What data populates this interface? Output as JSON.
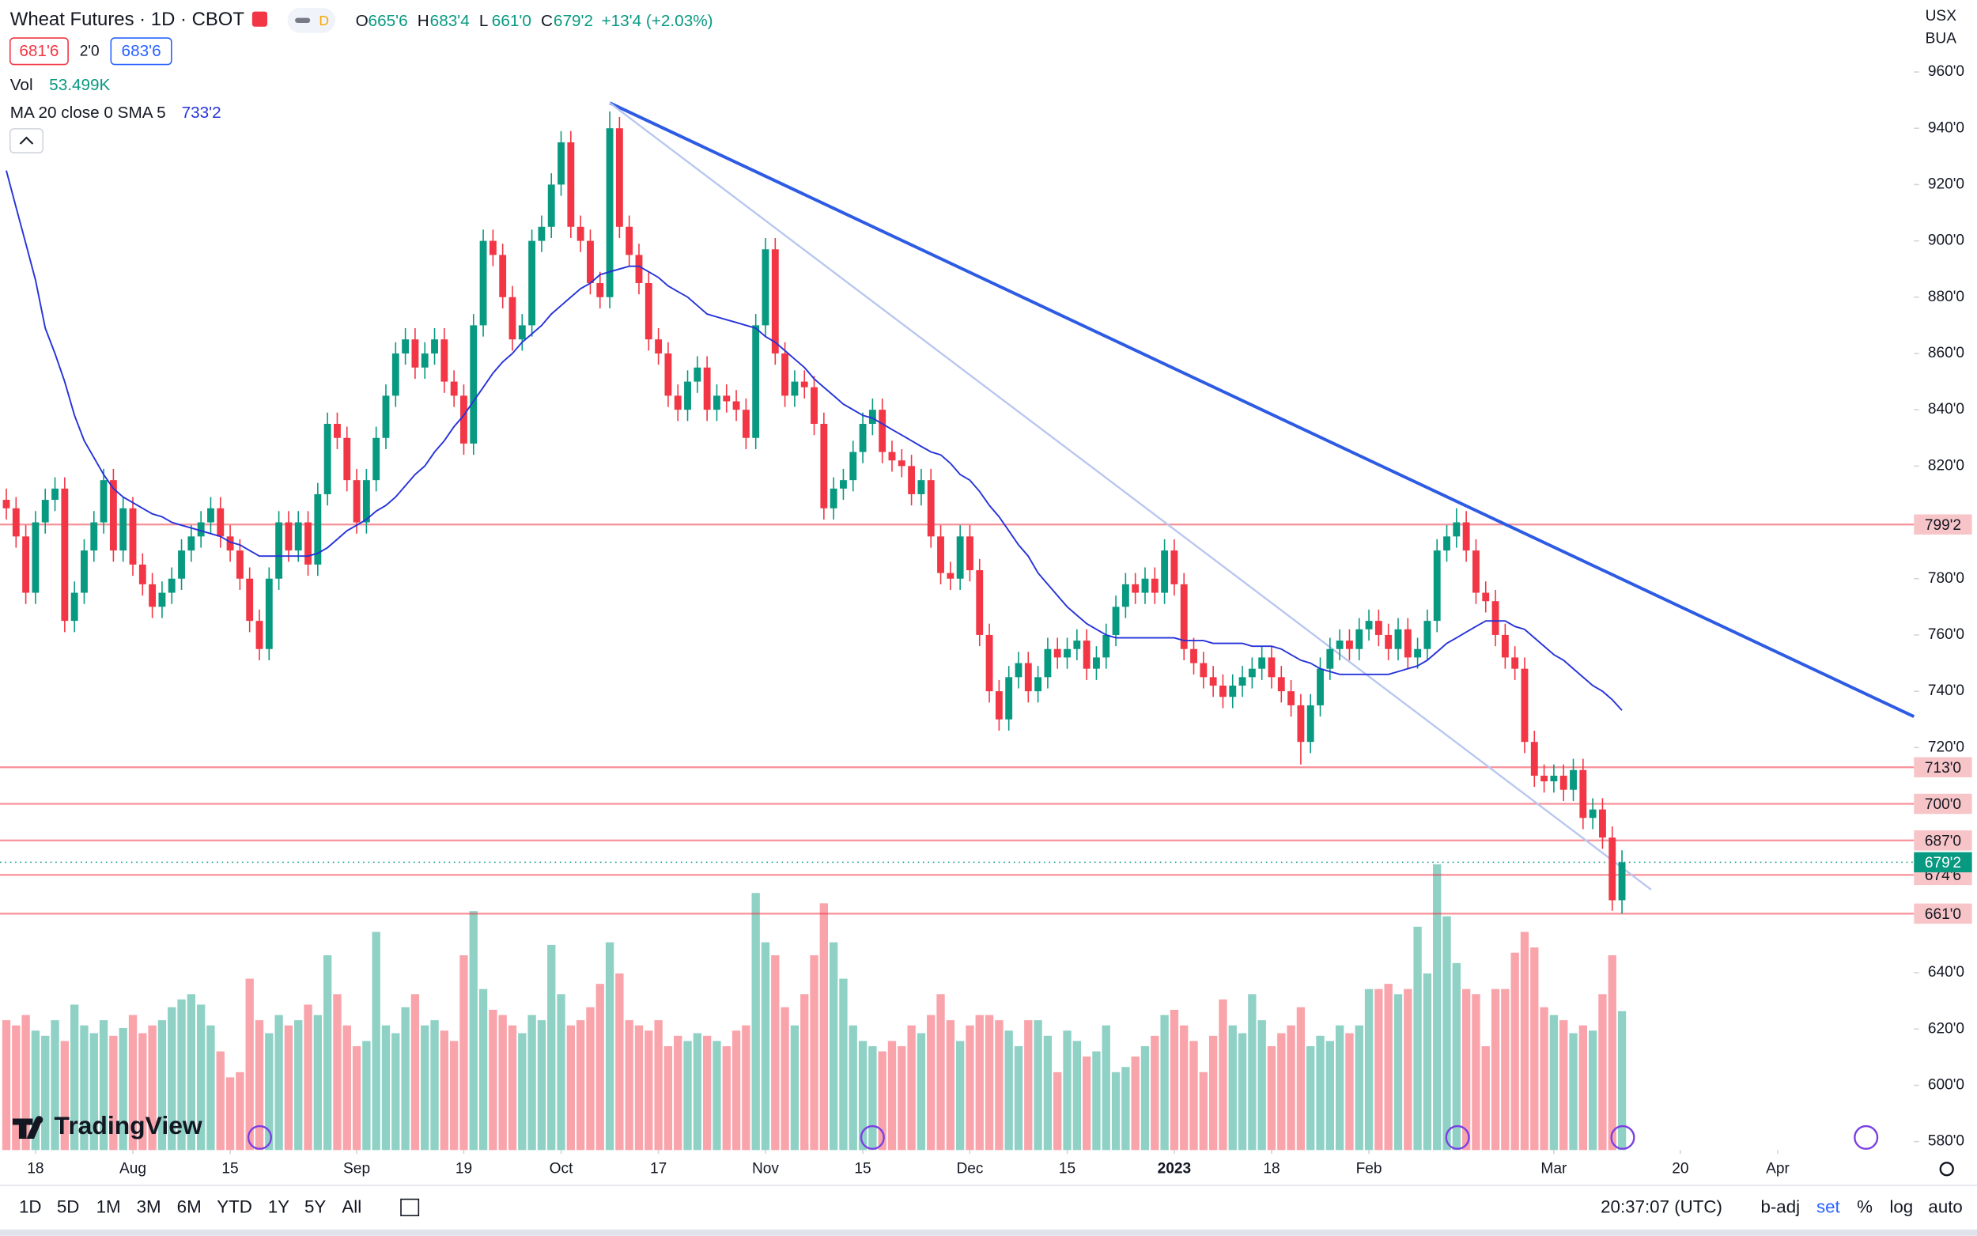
{
  "header": {
    "symbol": "Wheat Futures · 1D · CBOT",
    "badge": "D",
    "ohlc": [
      {
        "key": "O",
        "value": "665'6"
      },
      {
        "key": "H",
        "value": "683'4"
      },
      {
        "key": "L",
        "value": "661'0"
      },
      {
        "key": "C",
        "value": "679'2"
      }
    ],
    "change": "+13'4 (+2.03%)",
    "bid": "681'6",
    "spread": "2'0",
    "ask": "683'6",
    "vol_name": "Vol",
    "vol_value": "53.499K",
    "ma_name": "MA 20 close 0 SMA 5",
    "ma_value": "733'2",
    "currency": "USX",
    "unit": "BUA",
    "logo": "TradingView"
  },
  "toolbar": {
    "ranges": [
      "1D",
      "5D",
      "1M",
      "3M",
      "6M",
      "YTD",
      "1Y",
      "5Y",
      "All"
    ],
    "clock": "20:37:07 (UTC)",
    "options": [
      "b-adj",
      "set",
      "%",
      "log",
      "auto"
    ]
  },
  "chart_data": {
    "type": "candlestick",
    "up_color": "#089981",
    "down_color": "#f23645",
    "ma_color": "#2633d9",
    "open": [
      808,
      805,
      795,
      775,
      800,
      808,
      812,
      765,
      775,
      790,
      800,
      815,
      790,
      805,
      785,
      778,
      770,
      775,
      780,
      790,
      795,
      800,
      805,
      795,
      790,
      780,
      765,
      755,
      780,
      800,
      790,
      800,
      785,
      810,
      835,
      830,
      815,
      800,
      815,
      830,
      845,
      860,
      865,
      855,
      860,
      865,
      850,
      845,
      828,
      870,
      900,
      895,
      880,
      865,
      870,
      900,
      905,
      920,
      935,
      905,
      900,
      885,
      880,
      940,
      905,
      895,
      885,
      865,
      860,
      845,
      840,
      850,
      855,
      840,
      845,
      843,
      840,
      830,
      870,
      897,
      860,
      845,
      850,
      848,
      835,
      805,
      812,
      815,
      825,
      835,
      840,
      825,
      822,
      820,
      810,
      815,
      795,
      782,
      780,
      795,
      783,
      760,
      740,
      730,
      745,
      750,
      740,
      745,
      755,
      752,
      755,
      758,
      748,
      752,
      760,
      770,
      778,
      775,
      780,
      775,
      790,
      778,
      755,
      750,
      745,
      742,
      738,
      742,
      745,
      748,
      752,
      745,
      740,
      735,
      722,
      735,
      748,
      755,
      758,
      755,
      762,
      765,
      760,
      755,
      762,
      752,
      755,
      765,
      790,
      795,
      800,
      790,
      775,
      772,
      760,
      752,
      748,
      722,
      710,
      708,
      710,
      705,
      712,
      695,
      698,
      688,
      665.75
    ],
    "high": [
      812,
      809,
      799,
      804,
      812,
      816,
      816,
      779,
      794,
      804,
      819,
      819,
      809,
      809,
      789,
      782,
      779,
      784,
      794,
      799,
      804,
      809,
      809,
      799,
      794,
      784,
      769,
      784,
      804,
      804,
      804,
      804,
      814,
      839,
      839,
      834,
      819,
      819,
      834,
      849,
      864,
      869,
      869,
      864,
      869,
      869,
      854,
      849,
      874,
      904,
      904,
      899,
      884,
      874,
      904,
      909,
      924,
      939,
      939,
      909,
      904,
      889,
      946,
      944,
      909,
      899,
      889,
      869,
      864,
      849,
      854,
      859,
      859,
      849,
      849,
      847,
      844,
      874,
      901,
      901,
      864,
      854,
      854,
      852,
      839,
      816,
      819,
      829,
      839,
      844,
      844,
      829,
      826,
      824,
      819,
      819,
      799,
      786,
      799,
      799,
      787,
      764,
      744,
      749,
      754,
      754,
      749,
      759,
      759,
      759,
      762,
      762,
      756,
      764,
      774,
      782,
      782,
      784,
      784,
      794,
      794,
      782,
      759,
      754,
      749,
      746,
      746,
      749,
      752,
      756,
      756,
      749,
      744,
      739,
      739,
      752,
      759,
      762,
      762,
      766,
      769,
      769,
      764,
      766,
      766,
      759,
      769,
      794,
      799,
      805,
      804,
      794,
      779,
      776,
      764,
      756,
      752,
      726,
      714,
      714,
      714,
      716,
      716,
      702,
      702,
      692,
      683.5
    ],
    "low": [
      801,
      791,
      771,
      771,
      796,
      804,
      761,
      761,
      771,
      786,
      796,
      786,
      786,
      781,
      774,
      766,
      766,
      771,
      776,
      786,
      791,
      796,
      791,
      786,
      776,
      761,
      751,
      751,
      776,
      786,
      786,
      781,
      781,
      806,
      826,
      811,
      796,
      796,
      811,
      826,
      841,
      856,
      851,
      851,
      856,
      846,
      841,
      824,
      824,
      866,
      891,
      876,
      861,
      861,
      866,
      896,
      901,
      916,
      901,
      896,
      881,
      876,
      876,
      901,
      891,
      881,
      861,
      856,
      841,
      836,
      836,
      846,
      836,
      836,
      839,
      836,
      826,
      826,
      866,
      856,
      841,
      841,
      844,
      831,
      801,
      801,
      808,
      811,
      821,
      831,
      821,
      818,
      816,
      806,
      806,
      791,
      778,
      776,
      776,
      779,
      756,
      736,
      726,
      726,
      741,
      736,
      736,
      741,
      748,
      748,
      751,
      744,
      744,
      748,
      756,
      766,
      771,
      771,
      771,
      771,
      774,
      751,
      746,
      741,
      738,
      734,
      734,
      738,
      741,
      744,
      741,
      736,
      731,
      714,
      718,
      731,
      744,
      751,
      751,
      751,
      758,
      756,
      751,
      751,
      748,
      748,
      751,
      761,
      786,
      791,
      786,
      771,
      768,
      756,
      748,
      744,
      718,
      706,
      704,
      704,
      701,
      701,
      691,
      691,
      684,
      662,
      661
    ],
    "close": [
      805,
      795,
      775,
      800,
      808,
      812,
      765,
      775,
      790,
      800,
      815,
      790,
      805,
      785,
      778,
      770,
      775,
      780,
      790,
      795,
      800,
      805,
      795,
      790,
      780,
      765,
      755,
      780,
      800,
      790,
      800,
      785,
      810,
      835,
      830,
      815,
      800,
      815,
      830,
      845,
      860,
      865,
      855,
      860,
      865,
      850,
      845,
      828,
      870,
      900,
      895,
      880,
      865,
      870,
      900,
      905,
      920,
      935,
      905,
      900,
      885,
      880,
      940,
      905,
      895,
      885,
      865,
      860,
      845,
      840,
      850,
      855,
      840,
      845,
      843,
      840,
      830,
      870,
      897,
      860,
      845,
      850,
      848,
      835,
      805,
      812,
      815,
      825,
      835,
      840,
      825,
      822,
      820,
      810,
      815,
      795,
      782,
      780,
      795,
      783,
      760,
      740,
      730,
      745,
      750,
      740,
      745,
      755,
      752,
      755,
      758,
      748,
      752,
      760,
      770,
      778,
      775,
      780,
      775,
      790,
      778,
      755,
      750,
      745,
      742,
      738,
      742,
      745,
      748,
      752,
      745,
      740,
      735,
      722,
      735,
      748,
      755,
      758,
      755,
      762,
      765,
      760,
      755,
      762,
      752,
      755,
      765,
      790,
      795,
      800,
      790,
      775,
      772,
      760,
      752,
      748,
      722,
      710,
      708,
      710,
      705,
      712,
      695,
      698,
      688,
      665.75,
      679.25
    ],
    "volume": [
      50,
      48,
      52,
      46,
      44,
      50,
      42,
      56,
      48,
      45,
      50,
      44,
      47,
      52,
      45,
      48,
      50,
      55,
      58,
      60,
      56,
      48,
      38,
      28,
      30,
      66,
      50,
      45,
      52,
      48,
      50,
      56,
      52,
      75,
      60,
      48,
      40,
      42,
      84,
      48,
      45,
      55,
      60,
      48,
      50,
      46,
      42,
      75,
      92,
      62,
      54,
      52,
      48,
      45,
      52,
      50,
      79,
      60,
      48,
      50,
      55,
      64,
      80,
      68,
      50,
      48,
      46,
      50,
      40,
      44,
      42,
      45,
      44,
      42,
      40,
      46,
      48,
      99,
      80,
      75,
      55,
      48,
      60,
      75,
      95,
      80,
      66,
      48,
      42,
      40,
      38,
      42,
      40,
      48,
      45,
      52,
      60,
      50,
      42,
      48,
      52,
      52,
      50,
      46,
      40,
      50,
      50,
      44,
      30,
      46,
      42,
      36,
      38,
      48,
      30,
      32,
      36,
      40,
      44,
      52,
      54,
      48,
      42,
      30,
      44,
      58,
      48,
      45,
      60,
      50,
      40,
      45,
      48,
      55,
      40,
      44,
      42,
      48,
      45,
      48,
      62,
      62,
      64,
      60,
      62,
      86,
      68,
      110,
      90,
      72,
      62,
      60,
      40,
      62,
      62,
      76,
      84,
      78,
      55,
      52,
      50,
      45,
      48,
      46,
      60,
      75,
      53.499
    ],
    "ma": [
      925,
      912,
      899,
      886,
      869,
      860,
      850,
      838,
      829,
      823,
      817,
      812,
      809,
      807,
      805,
      803,
      802,
      800,
      799,
      798,
      797,
      796,
      795,
      793,
      792,
      790,
      788,
      788,
      788,
      788,
      788,
      788,
      789,
      791,
      794,
      797,
      799,
      801,
      804,
      806,
      809,
      813,
      817,
      820,
      825,
      829,
      834,
      838,
      843,
      848,
      853,
      857,
      860,
      864,
      867,
      870,
      874,
      877,
      880,
      883,
      885,
      888,
      889,
      890,
      891,
      891,
      889,
      887,
      884,
      882,
      880,
      877,
      874,
      873,
      872,
      871,
      870,
      869,
      866,
      864,
      861,
      858,
      855,
      851,
      848,
      845,
      842,
      840,
      838,
      837,
      835,
      833,
      831,
      829,
      827,
      825,
      824,
      821,
      817,
      815,
      811,
      806,
      802,
      797,
      792,
      788,
      782,
      778,
      774,
      770,
      767,
      764,
      762,
      760,
      759,
      759,
      759,
      759,
      759,
      759,
      759,
      758,
      758,
      758,
      757,
      757,
      757,
      757,
      756,
      756,
      756,
      755,
      753,
      751,
      750,
      748,
      747,
      746,
      746,
      746,
      746,
      746,
      746,
      747,
      748,
      749,
      751,
      754,
      757,
      759,
      761,
      763,
      765,
      765,
      765,
      763,
      762,
      759,
      756,
      753,
      751,
      748,
      745,
      742,
      740,
      737,
      733.25
    ],
    "levels": [
      {
        "value": 799.25,
        "label": "799'2"
      },
      {
        "value": 713,
        "label": "713'0"
      },
      {
        "value": 700,
        "label": "700'0"
      },
      {
        "value": 687,
        "label": "687'0"
      },
      {
        "value": 674.75,
        "label": "674'6"
      },
      {
        "value": 661,
        "label": "661'0"
      }
    ],
    "last": {
      "value": 679.25,
      "label": "679'2"
    },
    "trend_lines": [
      {
        "x": [
          62,
          196
        ],
        "y": [
          949,
          731
        ],
        "color": "#2d5be3"
      },
      {
        "x": [
          62,
          169
        ],
        "y": [
          949,
          669.5
        ],
        "color": "#b9c7f0"
      }
    ],
    "ylim": [
      577,
      985.5
    ],
    "yticks": [
      {
        "value": 960,
        "label": "960'0"
      },
      {
        "value": 940,
        "label": "940'0"
      },
      {
        "value": 920,
        "label": "920'0"
      },
      {
        "value": 900,
        "label": "900'0"
      },
      {
        "value": 880,
        "label": "880'0"
      },
      {
        "value": 860,
        "label": "860'0"
      },
      {
        "value": 840,
        "label": "840'0"
      },
      {
        "value": 820,
        "label": "820'0"
      },
      {
        "value": 780,
        "label": "780'0"
      },
      {
        "value": 760,
        "label": "760'0"
      },
      {
        "value": 740,
        "label": "740'0"
      },
      {
        "value": 720,
        "label": "720'0"
      },
      {
        "value": 640,
        "label": "640'0"
      },
      {
        "value": 620,
        "label": "620'0"
      },
      {
        "value": 600,
        "label": "600'0"
      },
      {
        "value": 580,
        "label": "580'0"
      }
    ],
    "xlim": [
      -0.65,
      196
    ],
    "xticks": [
      {
        "value": 3,
        "label": "18"
      },
      {
        "value": 13,
        "label": "Aug"
      },
      {
        "value": 23,
        "label": "15"
      },
      {
        "value": 36,
        "label": "Sep"
      },
      {
        "value": 47,
        "label": "19"
      },
      {
        "value": 57,
        "label": "Oct"
      },
      {
        "value": 67,
        "label": "17"
      },
      {
        "value": 78,
        "label": "Nov"
      },
      {
        "value": 88,
        "label": "15"
      },
      {
        "value": 99,
        "label": "Dec"
      },
      {
        "value": 109,
        "label": "15"
      },
      {
        "value": 120,
        "label": "2023"
      },
      {
        "value": 130,
        "label": "18"
      },
      {
        "value": 140,
        "label": "Feb"
      },
      {
        "value": 159,
        "label": "Mar"
      },
      {
        "value": 172,
        "label": "20"
      },
      {
        "value": 182,
        "label": "Apr"
      }
    ],
    "grid": false
  }
}
